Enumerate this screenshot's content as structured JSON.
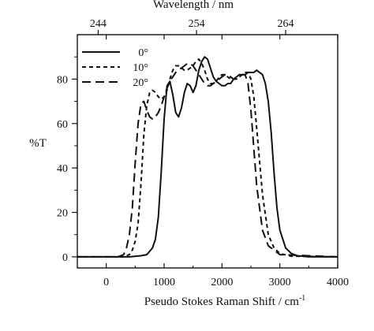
{
  "chart_data": {
    "type": "line",
    "title": "",
    "xlabel": "Pseudo Stokes Raman Shift / cm",
    "xlabel_superscript": "-1",
    "ylabel": "%T",
    "top_axis_label": "Wavelength / nm",
    "xlim": [
      -500,
      4000
    ],
    "ylim": [
      -5,
      100
    ],
    "x_ticks": [
      "0",
      "1000",
      "2000",
      "3000",
      "4000"
    ],
    "x_tick_values": [
      0,
      1000,
      2000,
      3000,
      4000
    ],
    "y_ticks": [
      "0",
      "20",
      "40",
      "60",
      "80"
    ],
    "y_tick_values": [
      0,
      20,
      40,
      60,
      80
    ],
    "top_ticks": [
      "244",
      "254",
      "264"
    ],
    "top_tick_positions_cm": [
      -140,
      1560,
      3100
    ],
    "legend_position": "top-left",
    "grid": false,
    "series": [
      {
        "name": "0°",
        "dash": "solid",
        "x": [
          -500,
          400,
          600,
          700,
          800,
          850,
          900,
          950,
          1000,
          1050,
          1100,
          1150,
          1200,
          1250,
          1300,
          1350,
          1400,
          1450,
          1500,
          1550,
          1600,
          1650,
          1700,
          1750,
          1800,
          1850,
          1900,
          1950,
          2000,
          2050,
          2100,
          2150,
          2200,
          2250,
          2300,
          2350,
          2400,
          2450,
          2500,
          2550,
          2600,
          2650,
          2700,
          2750,
          2800,
          2850,
          2900,
          2950,
          3000,
          3100,
          3200,
          3300,
          3500,
          4000
        ],
        "y": [
          0,
          0,
          0.5,
          1,
          4,
          8,
          18,
          38,
          62,
          77,
          79,
          73,
          65,
          63,
          67,
          74,
          78,
          77,
          74,
          77,
          84,
          88,
          90,
          89,
          85,
          81,
          79,
          78,
          77,
          77,
          78,
          78,
          80,
          81,
          82,
          82,
          82,
          83,
          83,
          83,
          84,
          83,
          82,
          78,
          70,
          56,
          38,
          22,
          12,
          4,
          1.5,
          0.5,
          0,
          0
        ]
      },
      {
        "name": "10°",
        "dash": "short",
        "x": [
          -500,
          300,
          400,
          450,
          500,
          550,
          600,
          650,
          700,
          750,
          800,
          850,
          900,
          950,
          1000,
          1050,
          1100,
          1150,
          1200,
          1250,
          1300,
          1350,
          1400,
          1450,
          1500,
          1550,
          1600,
          1650,
          1700,
          1750,
          1800,
          1850,
          1900,
          1950,
          2000,
          2050,
          2100,
          2150,
          2200,
          2250,
          2300,
          2350,
          2400,
          2450,
          2500,
          2550,
          2600,
          2700,
          2800,
          2900,
          3000,
          3200,
          4000
        ],
        "y": [
          0,
          0,
          1,
          3,
          7,
          15,
          33,
          55,
          68,
          74,
          75,
          74,
          72,
          71,
          72,
          75,
          80,
          84,
          86,
          86,
          85,
          84,
          84,
          85,
          86,
          88,
          89,
          87,
          84,
          80,
          78,
          78,
          79,
          81,
          82,
          82,
          81,
          80,
          80,
          81,
          81,
          82,
          83,
          83,
          80,
          72,
          58,
          28,
          10,
          4,
          1.5,
          0.3,
          0
        ]
      },
      {
        "name": "20°",
        "dash": "long",
        "x": [
          -500,
          200,
          300,
          350,
          400,
          450,
          500,
          550,
          600,
          650,
          700,
          750,
          800,
          850,
          900,
          950,
          1000,
          1050,
          1100,
          1150,
          1200,
          1250,
          1300,
          1350,
          1400,
          1450,
          1500,
          1550,
          1600,
          1650,
          1700,
          1750,
          1800,
          1850,
          1900,
          1950,
          2000,
          2050,
          2100,
          2150,
          2200,
          2250,
          2300,
          2350,
          2400,
          2450,
          2500,
          2600,
          2700,
          2800,
          3000,
          4000
        ],
        "y": [
          0,
          0,
          1,
          4,
          10,
          22,
          42,
          60,
          69,
          70,
          66,
          63,
          62,
          63,
          65,
          68,
          72,
          76,
          79,
          81,
          83,
          84,
          85,
          86,
          87,
          87,
          86,
          84,
          82,
          80,
          78,
          77,
          77,
          78,
          79,
          80,
          81,
          82,
          82,
          81,
          80,
          80,
          81,
          82,
          82,
          78,
          66,
          32,
          12,
          5,
          1,
          0
        ]
      }
    ]
  }
}
